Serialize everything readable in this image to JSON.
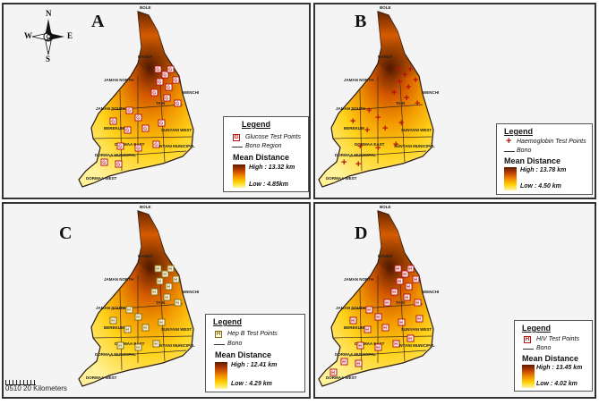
{
  "panels": [
    {
      "id": "A",
      "letter": "A",
      "legend_title": "Legend",
      "points_label": "Glucose Test Points",
      "region_label": "Bono Region",
      "mean_label": "Mean Distance",
      "high": "High : 13.32 km",
      "low": "Low : 4.85km",
      "symbol": "G"
    },
    {
      "id": "B",
      "letter": "B",
      "legend_title": "Legend",
      "points_label": "Haemoglobin Test Points",
      "region_label": "Bono",
      "mean_label": "Mean Distance",
      "high": "High : 13.78 km",
      "low": "Low : 4.50 km",
      "symbol": "+"
    },
    {
      "id": "C",
      "letter": "C",
      "legend_title": "Legend",
      "points_label": "Hep B Test Points",
      "region_label": "Bono",
      "mean_label": "Mean Distance",
      "high": "High : 12.41 km",
      "low": "Low : 4.29 km",
      "symbol": "H"
    },
    {
      "id": "D",
      "letter": "D",
      "legend_title": "Legend",
      "points_label": "HIV Test Points",
      "region_label": "Bono",
      "mean_label": "Mean Distance",
      "high": "High : 13.45 km",
      "low": "Low : 4.02 km",
      "symbol": "H"
    }
  ],
  "district_labels": [
    "BOLE",
    "BANDA",
    "JAMAN NORTH",
    "TAIN",
    "WENCHI",
    "JAMAN SOUTH",
    "BEREKUM",
    "SUNYANI WEST",
    "DORMAA EAST",
    "SUNYANI MUNICIPAL",
    "DORMAA MUNICIPAL",
    "DORMAA WEST"
  ],
  "compass": {
    "n": "N",
    "s": "S",
    "e": "E",
    "w": "W"
  },
  "scalebar": {
    "label": "0510 20 Kilometers"
  },
  "colors": {
    "dark": "#5a1a00",
    "mid": "#d55a00",
    "orange": "#f29a00",
    "yellow": "#ffd21a",
    "pale": "#fff29a",
    "symbol": "#b51212"
  }
}
